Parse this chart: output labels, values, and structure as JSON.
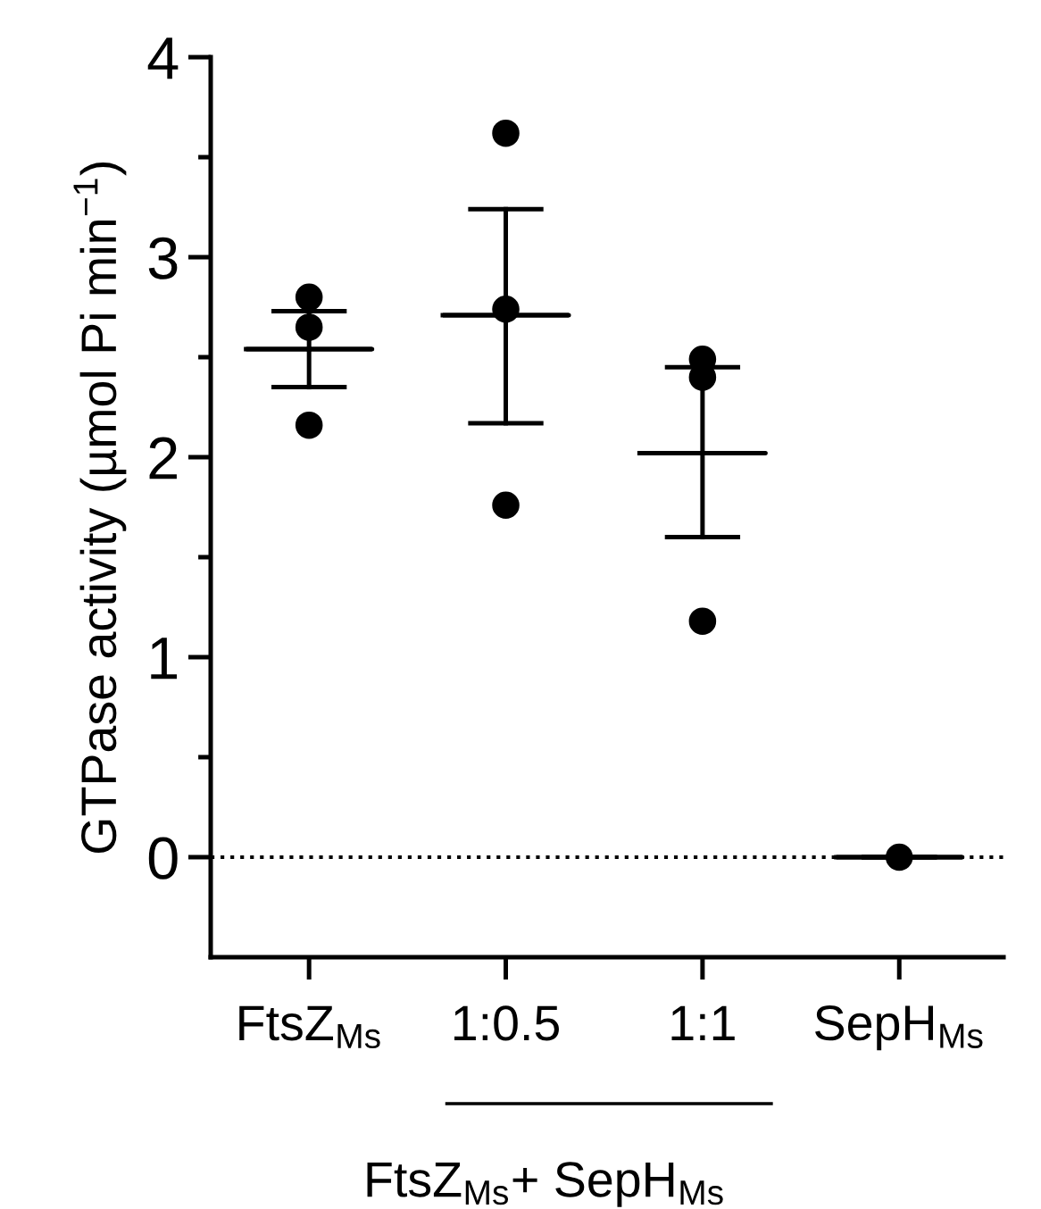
{
  "chart_data": {
    "type": "scatter",
    "ylabel": "GTPase activity (µmol Pi min$^{−1}$)",
    "xlabel": "FtsZ$_{Ms}$+ SepH$_{Ms}$",
    "categories": [
      "FtsZ$_{Ms}$",
      "1:0.5",
      "1:1",
      "SepH$_{Ms}$"
    ],
    "series": [
      {
        "color": "#000000",
        "marker": "circle",
        "x": [
          "FtsZ$_{Ms}$",
          "FtsZ$_{Ms}$",
          "FtsZ$_{Ms}$",
          "1:0.5",
          "1:0.5",
          "1:0.5",
          "1:1",
          "1:1",
          "1:1",
          "SepH$_{Ms}$"
        ],
        "values": [
          2.8,
          2.65,
          2.16,
          3.62,
          2.74,
          1.76,
          2.49,
          2.4,
          1.18,
          0
        ]
      },
      {
        "type": "box",
        "color": "#000000",
        "boxes": [
          {
            "low": 2.35,
            "q1": 2.54,
            "median": 2.54,
            "q3": 2.54,
            "high": 2.73
          },
          {
            "low": 2.17,
            "q1": 2.71,
            "median": 2.71,
            "q3": 2.71,
            "high": 3.24
          },
          {
            "low": 1.6,
            "q1": 2.02,
            "median": 2.02,
            "q3": 2.02,
            "high": 2.45
          },
          {
            "low": 0,
            "q1": 0,
            "median": 0,
            "q3": 0,
            "high": 0
          }
        ]
      }
    ],
    "ylim": [
      -0.5,
      4
    ],
    "yticks": [
      0,
      {
        "value": 0.5,
        "label": null
      },
      1,
      {
        "value": 1.5,
        "label": null
      },
      2,
      {
        "value": 2.5,
        "label": null
      },
      3,
      {
        "value": 3.5,
        "label": null
      },
      4
    ],
    "ref_lines": [
      {
        "axis": "y",
        "value": 0,
        "line_style": "dotted",
        "color": "#000000"
      }
    ],
    "grid": false,
    "legend": false
  }
}
